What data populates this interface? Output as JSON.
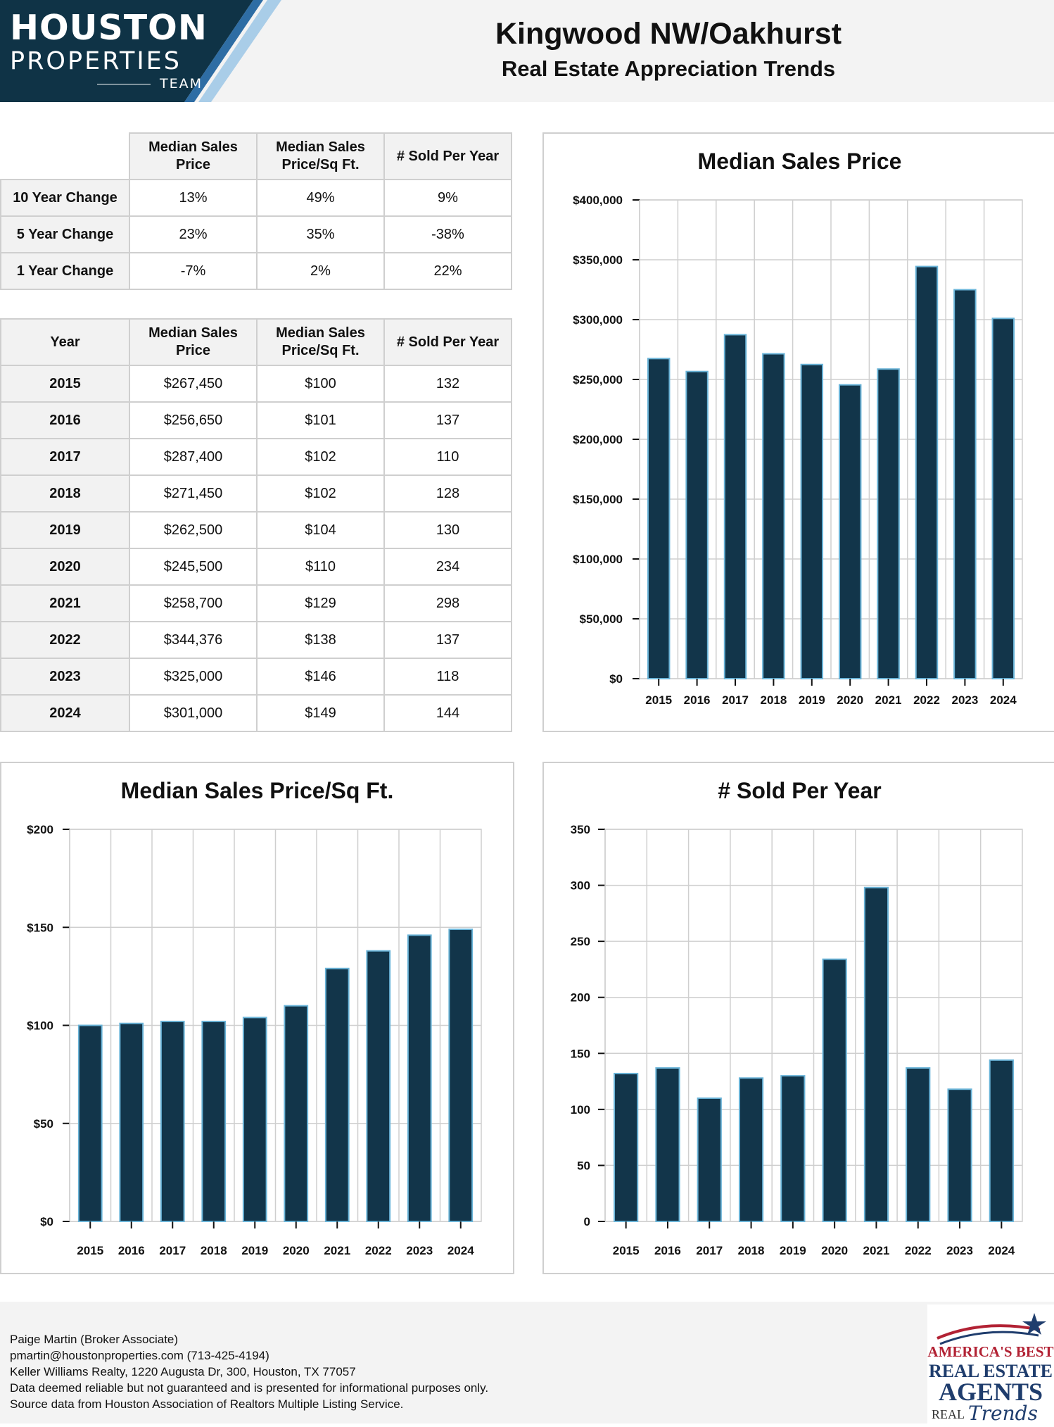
{
  "header": {
    "logo_line1": "HOUSTON",
    "logo_line2": "PROPERTIES",
    "logo_line3": "TEAM",
    "title": "Kingwood NW/Oakhurst",
    "subtitle": "Real Estate Appreciation Trends"
  },
  "colors": {
    "bar_fill": "#12354a",
    "bar_stroke": "#6ab4d8",
    "logo_bg": "#0f3346",
    "logo_stripe": "#2e6da4",
    "logo_stripe_light": "#a9cde8",
    "badge_red": "#b22234",
    "badge_navy": "#1f3d6d"
  },
  "change_table": {
    "columns": [
      "Median Sales Price",
      "Median Sales Price/Sq Ft.",
      "# Sold Per Year"
    ],
    "rows": [
      {
        "label": "10 Year Change",
        "values": [
          "13%",
          "49%",
          "9%"
        ]
      },
      {
        "label": "5 Year Change",
        "values": [
          "23%",
          "35%",
          "-38%"
        ]
      },
      {
        "label": "1 Year Change",
        "values": [
          "-7%",
          "2%",
          "22%"
        ]
      }
    ]
  },
  "year_table": {
    "columns": [
      "Year",
      "Median Sales Price",
      "Median Sales Price/Sq Ft.",
      "# Sold Per Year"
    ],
    "rows": [
      [
        "2015",
        "$267,450",
        "$100",
        "132"
      ],
      [
        "2016",
        "$256,650",
        "$101",
        "137"
      ],
      [
        "2017",
        "$287,400",
        "$102",
        "110"
      ],
      [
        "2018",
        "$271,450",
        "$102",
        "128"
      ],
      [
        "2019",
        "$262,500",
        "$104",
        "130"
      ],
      [
        "2020",
        "$245,500",
        "$110",
        "234"
      ],
      [
        "2021",
        "$258,700",
        "$129",
        "298"
      ],
      [
        "2022",
        "$344,376",
        "$138",
        "137"
      ],
      [
        "2023",
        "$325,000",
        "$146",
        "118"
      ],
      [
        "2024",
        "$301,000",
        "$149",
        "144"
      ]
    ]
  },
  "chart_data": [
    {
      "id": "price",
      "type": "bar",
      "title": "Median Sales Price",
      "categories": [
        "2015",
        "2016",
        "2017",
        "2018",
        "2019",
        "2020",
        "2021",
        "2022",
        "2023",
        "2024"
      ],
      "values": [
        267450,
        256650,
        287400,
        271450,
        262500,
        245500,
        258700,
        344376,
        325000,
        301000
      ],
      "ylim": [
        0,
        400000
      ],
      "yticks": [
        0,
        50000,
        100000,
        150000,
        200000,
        250000,
        300000,
        350000,
        400000
      ],
      "ytick_labels": [
        "$0",
        "$50,000",
        "$100,000",
        "$150,000",
        "$200,000",
        "$250,000",
        "$300,000",
        "$350,000",
        "$400,000"
      ],
      "grid": true
    },
    {
      "id": "sqft",
      "type": "bar",
      "title": "Median Sales Price/Sq Ft.",
      "categories": [
        "2015",
        "2016",
        "2017",
        "2018",
        "2019",
        "2020",
        "2021",
        "2022",
        "2023",
        "2024"
      ],
      "values": [
        100,
        101,
        102,
        102,
        104,
        110,
        129,
        138,
        146,
        149
      ],
      "ylim": [
        0,
        200
      ],
      "yticks": [
        0,
        50,
        100,
        150,
        200
      ],
      "ytick_labels": [
        "$0",
        "$50",
        "$100",
        "$150",
        "$200"
      ],
      "grid": true
    },
    {
      "id": "sold",
      "type": "bar",
      "title": "# Sold Per Year",
      "categories": [
        "2015",
        "2016",
        "2017",
        "2018",
        "2019",
        "2020",
        "2021",
        "2022",
        "2023",
        "2024"
      ],
      "values": [
        132,
        137,
        110,
        128,
        130,
        234,
        298,
        137,
        118,
        144
      ],
      "ylim": [
        0,
        350
      ],
      "yticks": [
        0,
        50,
        100,
        150,
        200,
        250,
        300,
        350
      ],
      "ytick_labels": [
        "0",
        "50",
        "100",
        "150",
        "200",
        "250",
        "300",
        "350"
      ],
      "grid": true
    }
  ],
  "footer": {
    "lines": [
      "Paige Martin (Broker Associate)",
      "pmartin@houstonproperties.com (713-425-4194)",
      "Keller Williams Realty, 1220 Augusta Dr, 300, Houston, TX 77057",
      "Data deemed reliable but not guaranteed and is presented for informational purposes only.",
      "Source data from Houston Association of Realtors Multiple Listing Service."
    ]
  },
  "badge": {
    "line1": "AMERICA'S BEST",
    "line2": "REAL ESTATE",
    "line3": "AGENTS",
    "line4": "REAL",
    "line5": "Trends"
  }
}
